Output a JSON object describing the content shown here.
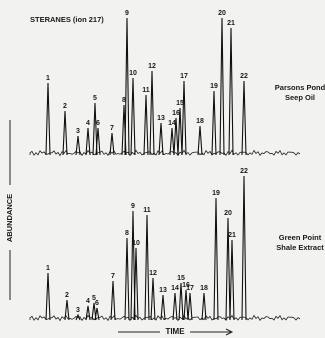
{
  "chart_data": [
    {
      "type": "peaks",
      "title": "STERANES (ion 217)",
      "label_lines": [
        "Parsons Pond",
        "Seep Oil"
      ],
      "y_label": "ABUNDANCE",
      "categories": [
        "1",
        "2",
        "3",
        "4",
        "5",
        "6",
        "7",
        "8",
        "9",
        "10",
        "11",
        "12",
        "13",
        "14",
        "15",
        "16",
        "17",
        "18",
        "19",
        "20",
        "21",
        "22"
      ],
      "x": [
        48,
        65,
        78,
        88,
        95,
        98,
        112,
        124,
        127,
        133,
        146,
        152,
        161,
        172,
        180,
        176,
        184,
        200,
        214,
        222,
        231,
        244
      ],
      "values": [
        72,
        44,
        19,
        27,
        52,
        27,
        22,
        50,
        137,
        77,
        60,
        84,
        32,
        27,
        47,
        37,
        74,
        29,
        64,
        137,
        127,
        74
      ],
      "xlim": [
        20,
        320
      ],
      "ylim": [
        0,
        150
      ]
    },
    {
      "type": "peaks",
      "label_lines": [
        "Green Point",
        "Shale Extract"
      ],
      "x_label": "TIME",
      "categories": [
        "1",
        "2",
        "3",
        "4",
        "5",
        "6",
        "7",
        "8",
        "9",
        "10",
        "11",
        "12",
        "13",
        "14",
        "15",
        "16",
        "17",
        "18",
        "19",
        "20",
        "21",
        "22"
      ],
      "x": [
        48,
        67,
        78,
        88,
        94,
        97,
        113,
        127,
        133,
        136,
        147,
        153,
        163,
        175,
        181,
        186,
        190,
        204,
        216,
        228,
        232,
        244
      ],
      "values": [
        47,
        20,
        5,
        14,
        17,
        12,
        39,
        82,
        109,
        72,
        105,
        42,
        25,
        27,
        37,
        30,
        27,
        27,
        122,
        102,
        80,
        144
      ],
      "xlim": [
        20,
        320
      ],
      "ylim": [
        0,
        150
      ]
    }
  ]
}
